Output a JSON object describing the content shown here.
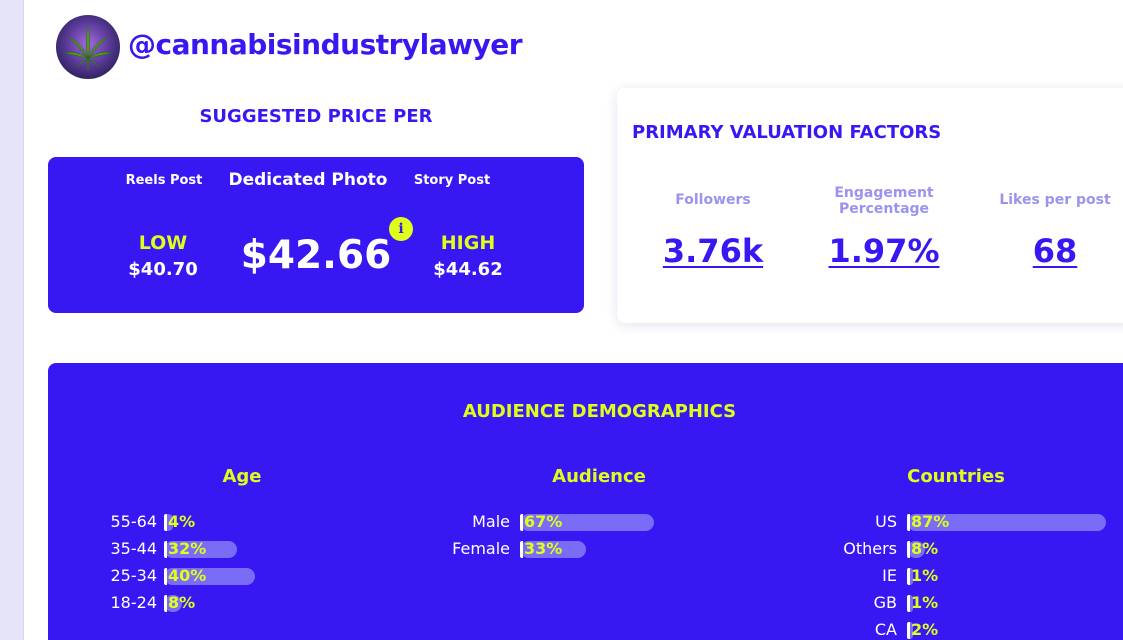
{
  "profile": {
    "handle": "@cannabisindustrylawyer",
    "avatar_icon": "cannabis-leaf-icon"
  },
  "price": {
    "title": "SUGGESTED PRICE PER",
    "tabs": [
      "Reels Post",
      "Dedicated Photo",
      "Story Post"
    ],
    "selected_tab": "Dedicated Photo",
    "low_label": "LOW",
    "low_value": "$40.70",
    "main_value": "$42.66",
    "high_label": "HIGH",
    "high_value": "$44.62",
    "info_glyph": "i"
  },
  "factors": {
    "title": "PRIMARY VALUATION FACTORS",
    "items": [
      {
        "label": "Followers",
        "value": "3.76k"
      },
      {
        "label": "Engagement Percentage",
        "value": "1.97%"
      },
      {
        "label": "Likes per post",
        "value": "68"
      }
    ]
  },
  "demographics": {
    "title": "AUDIENCE DEMOGRAPHICS",
    "age": {
      "title": "Age",
      "rows": [
        {
          "label": "55-64",
          "value": "4%",
          "pct": 4
        },
        {
          "label": "35-44",
          "value": "32%",
          "pct": 32
        },
        {
          "label": "25-34",
          "value": "40%",
          "pct": 40
        },
        {
          "label": "18-24",
          "value": "8%",
          "pct": 8
        }
      ]
    },
    "audience": {
      "title": "Audience",
      "rows": [
        {
          "label": "Male",
          "value": "67%",
          "pct": 67
        },
        {
          "label": "Female",
          "value": "33%",
          "pct": 33
        }
      ]
    },
    "countries": {
      "title": "Countries",
      "rows": [
        {
          "label": "US",
          "value": "87%",
          "pct": 87
        },
        {
          "label": "Others",
          "value": "8%",
          "pct": 8
        },
        {
          "label": "IE",
          "value": "1%",
          "pct": 1
        },
        {
          "label": "GB",
          "value": "1%",
          "pct": 1
        },
        {
          "label": "CA",
          "value": "2%",
          "pct": 2
        }
      ]
    }
  },
  "colors": {
    "brand": "#3718f2",
    "accent": "#dfff1a",
    "bar_track": "#7a6cf7",
    "muted_label": "#9a93ef"
  }
}
